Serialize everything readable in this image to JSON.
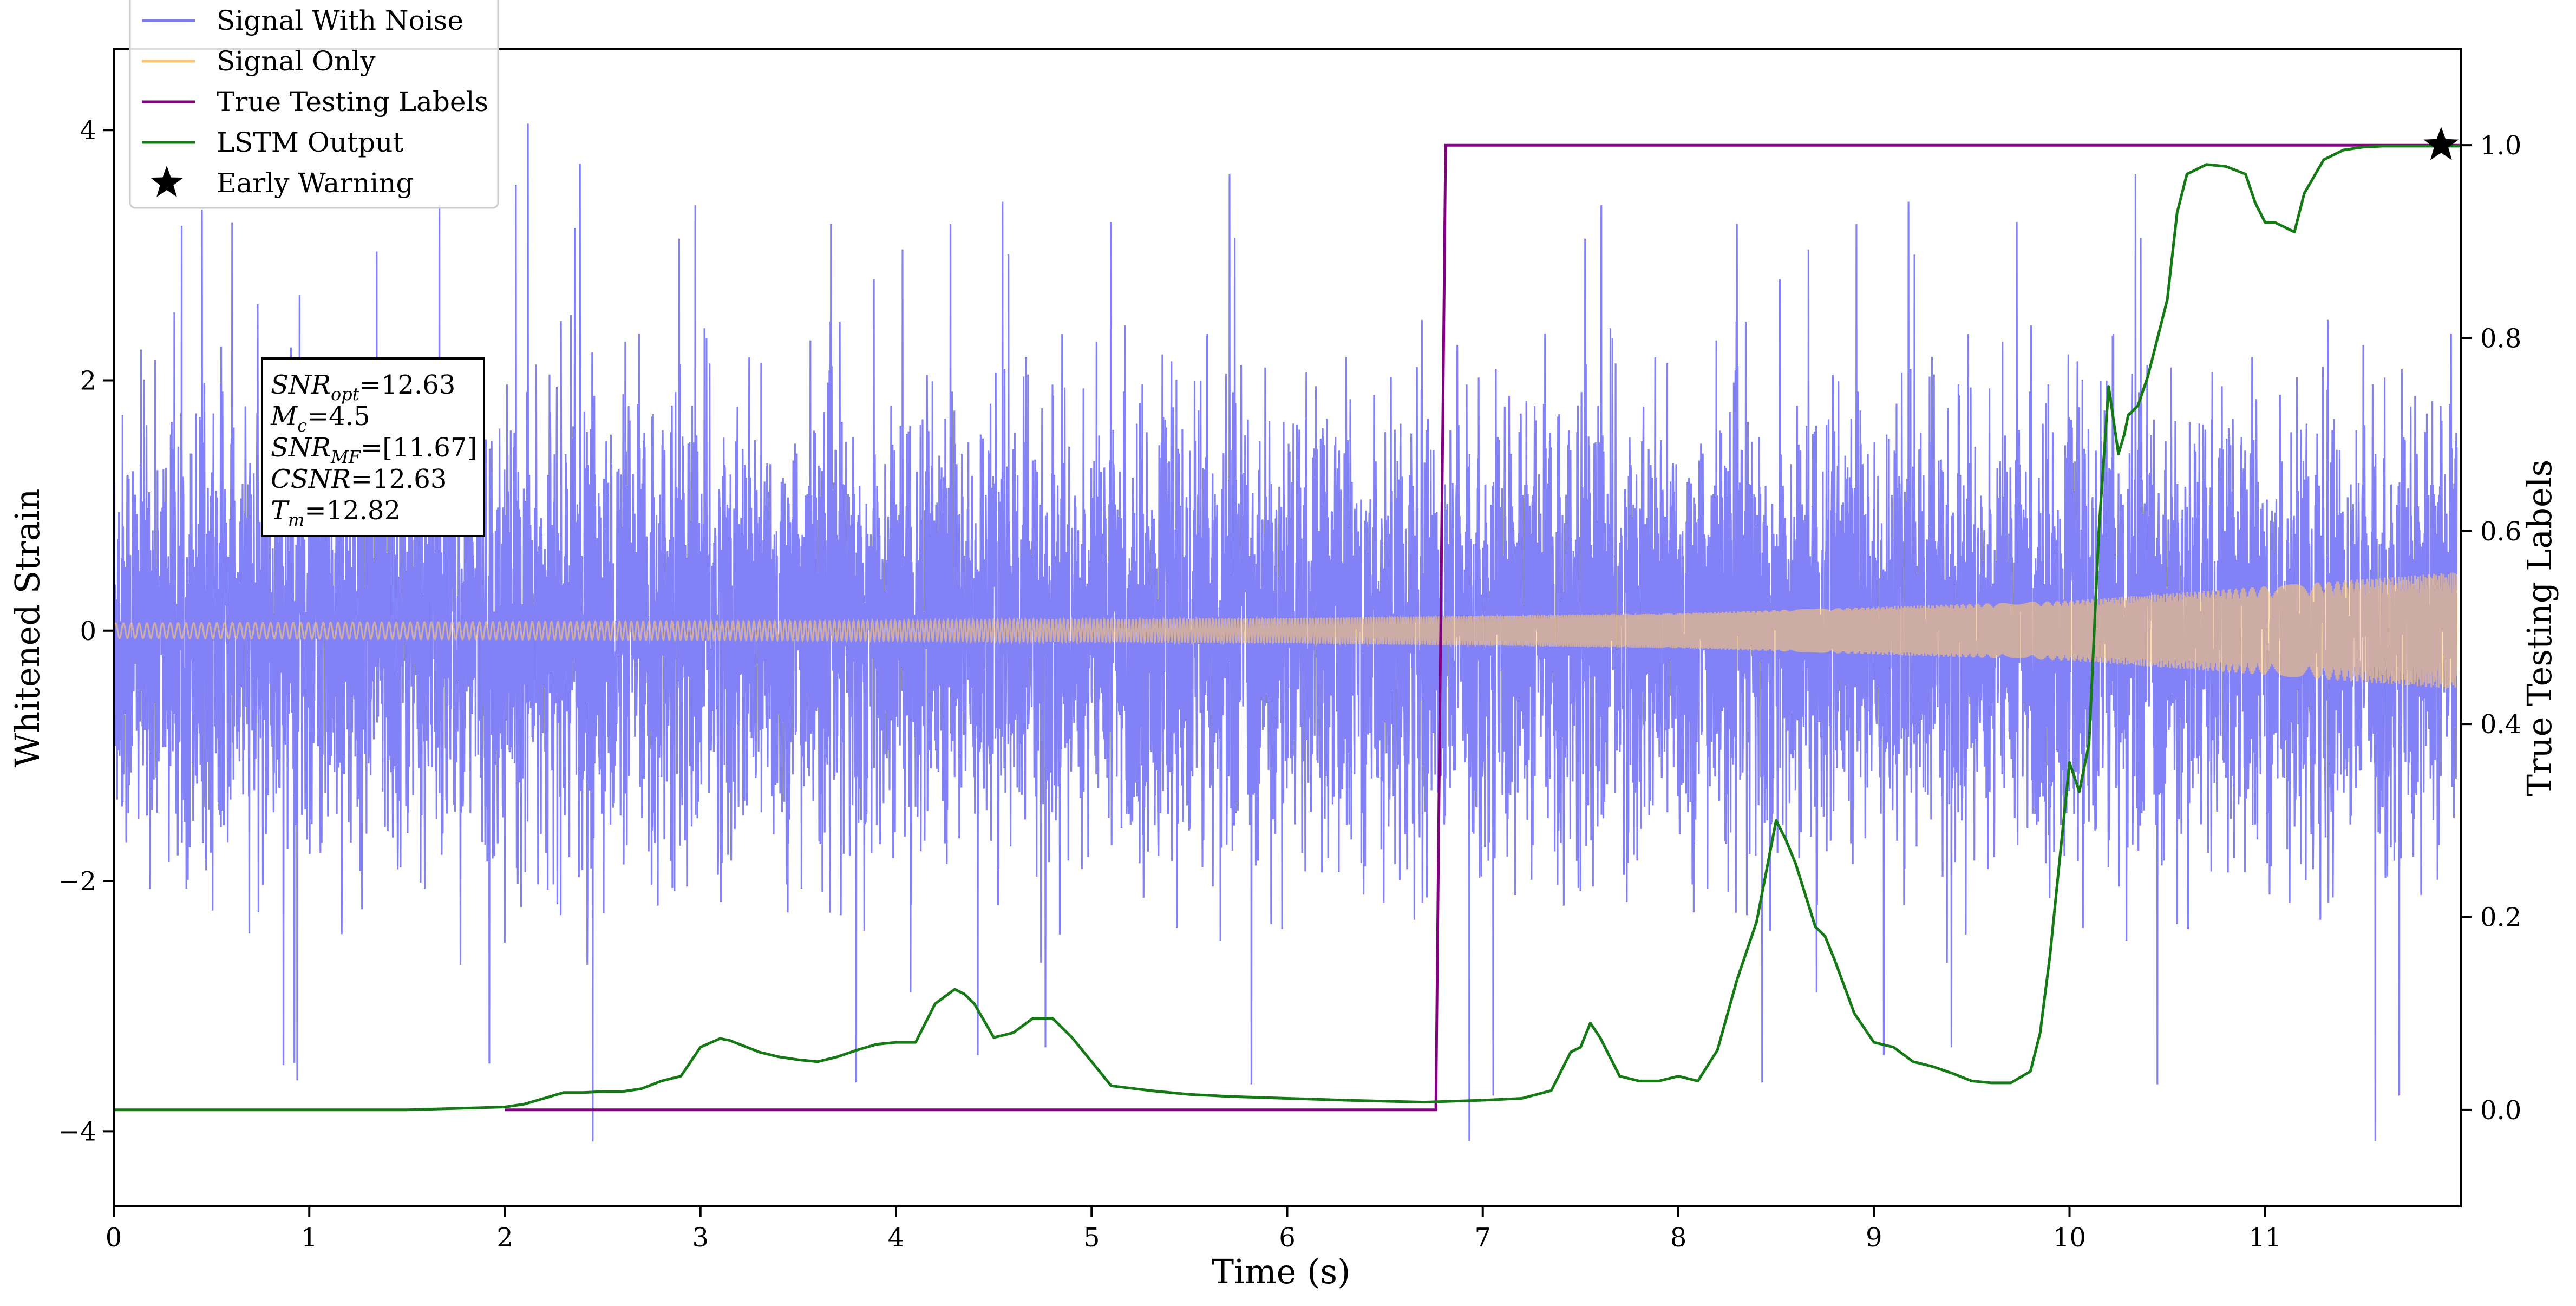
{
  "chart_data": {
    "type": "line",
    "xlabel": "Time (s)",
    "ylabel_left": "Whitened Strain",
    "ylabel_right": "True Testing Labels",
    "xlim": [
      0,
      12
    ],
    "ylim_left": [
      -4.6,
      4.65
    ],
    "ylim_right": [
      -0.1,
      1.1
    ],
    "x_ticks": [
      0,
      1,
      2,
      3,
      4,
      5,
      6,
      7,
      8,
      9,
      10,
      11
    ],
    "x_tick_labels": [
      "0",
      "1",
      "2",
      "3",
      "4",
      "5",
      "6",
      "7",
      "8",
      "9",
      "10",
      "11"
    ],
    "y_left_ticks": [
      4,
      2,
      0,
      -2,
      -4
    ],
    "y_left_tick_labels": [
      "4",
      "2",
      "0",
      "−2",
      "−4"
    ],
    "y_right_ticks": [
      1.0,
      0.8,
      0.6,
      0.4,
      0.2,
      0.0
    ],
    "y_right_tick_labels": [
      "1.0",
      "0.8",
      "0.6",
      "0.4",
      "0.2",
      "0.0"
    ],
    "grid": false,
    "legend_position": "top-left",
    "legend": [
      {
        "label": "Signal With Noise",
        "color": "#7b7bf5",
        "marker": "line"
      },
      {
        "label": "Signal Only",
        "color": "#ffc870",
        "marker": "line"
      },
      {
        "label": "True Testing Labels",
        "color": "#800080",
        "marker": "line"
      },
      {
        "label": "LSTM Output",
        "color": "#157a15",
        "marker": "line"
      },
      {
        "label": "Early Warning",
        "color": "#000000",
        "marker": "star"
      }
    ],
    "annotation": {
      "lines": [
        {
          "base": "SNR",
          "sub": "opt",
          "value": "=12.63"
        },
        {
          "base": "M",
          "sub": "c",
          "value": "=4.5"
        },
        {
          "base": "SNR",
          "sub": "MF",
          "value": "=[11.67]"
        },
        {
          "base": "CSNR",
          "sub": "",
          "value": "=12.63"
        },
        {
          "base": "T",
          "sub": "m",
          "value": "=12.82"
        }
      ]
    },
    "series": [
      {
        "name": "Signal With Noise",
        "axis": "left",
        "color": "#7b7bf5",
        "description": "dense whitened noise, typical band roughly -2 to 2, peaks to about 4.2 and -4.2"
      },
      {
        "name": "Signal Only",
        "axis": "left",
        "color": "#ffc870",
        "amplitude_envelope": {
          "x": [
            0,
            2,
            4,
            6,
            8,
            10,
            12
          ],
          "y": [
            0.06,
            0.07,
            0.08,
            0.1,
            0.14,
            0.24,
            0.47
          ]
        }
      },
      {
        "name": "True Testing Labels",
        "axis": "right",
        "color": "#800080",
        "x": [
          2.0,
          6.76,
          6.81,
          12.0
        ],
        "y": [
          0.0,
          0.0,
          1.0,
          1.0
        ]
      },
      {
        "name": "LSTM Output",
        "axis": "right",
        "color": "#157a15",
        "x": [
          0.0,
          1.5,
          2.0,
          2.1,
          2.2,
          2.3,
          2.4,
          2.5,
          2.6,
          2.7,
          2.8,
          2.9,
          3.0,
          3.1,
          3.15,
          3.2,
          3.3,
          3.4,
          3.5,
          3.6,
          3.7,
          3.8,
          3.9,
          4.0,
          4.1,
          4.2,
          4.3,
          4.35,
          4.4,
          4.5,
          4.6,
          4.7,
          4.75,
          4.8,
          4.9,
          5.0,
          5.1,
          5.3,
          5.5,
          5.7,
          6.0,
          6.3,
          6.7,
          7.0,
          7.2,
          7.35,
          7.45,
          7.5,
          7.55,
          7.6,
          7.7,
          7.8,
          7.9,
          8.0,
          8.1,
          8.2,
          8.3,
          8.4,
          8.5,
          8.55,
          8.6,
          8.7,
          8.75,
          8.8,
          8.9,
          9.0,
          9.1,
          9.2,
          9.3,
          9.4,
          9.5,
          9.6,
          9.7,
          9.8,
          9.85,
          9.9,
          9.95,
          10.0,
          10.05,
          10.1,
          10.15,
          10.2,
          10.25,
          10.28,
          10.3,
          10.35,
          10.4,
          10.5,
          10.55,
          10.6,
          10.65,
          10.7,
          10.8,
          10.9,
          10.95,
          11.0,
          11.05,
          11.1,
          11.15,
          11.2,
          11.3,
          11.4,
          11.5,
          11.6,
          11.7,
          11.8,
          11.9,
          12.0
        ],
        "y": [
          0.0,
          0.0,
          0.003,
          0.006,
          0.012,
          0.018,
          0.018,
          0.019,
          0.019,
          0.022,
          0.03,
          0.035,
          0.065,
          0.074,
          0.072,
          0.068,
          0.06,
          0.055,
          0.052,
          0.05,
          0.055,
          0.062,
          0.068,
          0.07,
          0.07,
          0.11,
          0.125,
          0.12,
          0.11,
          0.075,
          0.08,
          0.095,
          0.095,
          0.095,
          0.075,
          0.05,
          0.025,
          0.02,
          0.016,
          0.014,
          0.012,
          0.01,
          0.008,
          0.01,
          0.012,
          0.02,
          0.06,
          0.065,
          0.09,
          0.075,
          0.035,
          0.03,
          0.03,
          0.035,
          0.03,
          0.062,
          0.135,
          0.195,
          0.3,
          0.28,
          0.255,
          0.19,
          0.18,
          0.155,
          0.1,
          0.07,
          0.065,
          0.05,
          0.045,
          0.038,
          0.03,
          0.028,
          0.028,
          0.04,
          0.08,
          0.16,
          0.26,
          0.36,
          0.33,
          0.38,
          0.6,
          0.75,
          0.68,
          0.7,
          0.72,
          0.73,
          0.76,
          0.84,
          0.93,
          0.97,
          0.975,
          0.98,
          0.978,
          0.97,
          0.94,
          0.92,
          0.92,
          0.915,
          0.91,
          0.95,
          0.985,
          0.995,
          0.998,
          0.999,
          0.999,
          0.999,
          0.999,
          0.999
        ]
      }
    ],
    "early_warning": {
      "x": 11.9,
      "y": 1.0,
      "axis": "right",
      "marker": "star"
    }
  }
}
